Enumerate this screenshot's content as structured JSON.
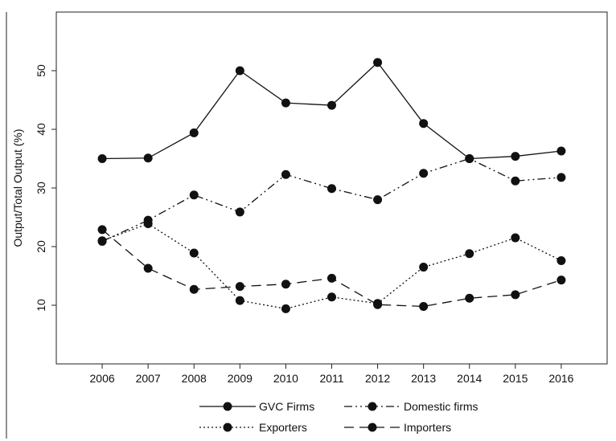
{
  "chart_data": {
    "type": "line",
    "title": "",
    "xlabel": "",
    "ylabel": "Output/Total Output (%)",
    "x": [
      2006,
      2007,
      2008,
      2009,
      2010,
      2011,
      2012,
      2013,
      2014,
      2015,
      2016
    ],
    "xlim": [
      2005,
      2017
    ],
    "ylim": [
      0,
      60
    ],
    "yticks": [
      10,
      20,
      30,
      40,
      50
    ],
    "grid": false,
    "legend_position": "bottom",
    "series": [
      {
        "name": "GVC Firms",
        "dash": "solid",
        "values": [
          35.0,
          35.1,
          39.4,
          50.0,
          44.5,
          44.1,
          51.4,
          41.0,
          35.0,
          35.4,
          36.3
        ]
      },
      {
        "name": "Domestic firms",
        "dash": "dashdot",
        "values": [
          20.9,
          24.5,
          28.8,
          25.9,
          32.3,
          29.9,
          28.0,
          32.5,
          35.0,
          31.2,
          31.8
        ]
      },
      {
        "name": "Exporters",
        "dash": "dot",
        "values": [
          21.0,
          23.9,
          18.9,
          10.8,
          9.4,
          11.4,
          10.3,
          16.5,
          18.8,
          21.5,
          17.6
        ]
      },
      {
        "name": "Importers",
        "dash": "dash",
        "values": [
          22.9,
          16.3,
          12.7,
          13.2,
          13.6,
          14.6,
          10.1,
          9.8,
          11.2,
          11.8,
          14.3
        ]
      }
    ]
  }
}
